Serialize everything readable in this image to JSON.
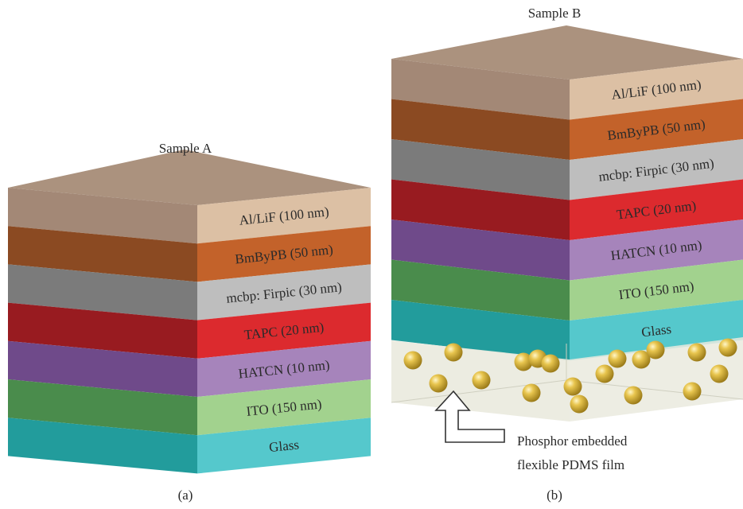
{
  "sample_a": {
    "title": "Sample A",
    "caption": "(a)",
    "layers": [
      {
        "label": "Al/LiF (100 nm)",
        "front": "#dcc0a4",
        "side": "#a38876"
      },
      {
        "label": "BmByPB (50 nm)",
        "front": "#c3622a",
        "side": "#8b4a22"
      },
      {
        "label": "mcbp: Firpic (30 nm)",
        "front": "#bebebe",
        "side": "#7b7b7b"
      },
      {
        "label": "TAPC (20 nm)",
        "front": "#dc2a2e",
        "side": "#981b20"
      },
      {
        "label": "HATCN (10 nm)",
        "front": "#a684bb",
        "side": "#6f4a8a"
      },
      {
        "label": "ITO (150 nm)",
        "front": "#a2d28e",
        "side": "#4a8c4c"
      },
      {
        "label": "Glass",
        "front": "#55c8cc",
        "side": "#229c9c"
      }
    ],
    "top_color": "#ab927e"
  },
  "sample_b": {
    "title": "Sample B",
    "caption": "(b)",
    "layers": [
      {
        "label": "Al/LiF (100 nm)",
        "front": "#dcc0a4",
        "side": "#a38876"
      },
      {
        "label": "BmByPB (50 nm)",
        "front": "#c3622a",
        "side": "#8b4a22"
      },
      {
        "label": "mcbp: Firpic (30 nm)",
        "front": "#bebebe",
        "side": "#7b7b7b"
      },
      {
        "label": "TAPC (20 nm)",
        "front": "#dc2a2e",
        "side": "#981b20"
      },
      {
        "label": "HATCN (10 nm)",
        "front": "#a684bb",
        "side": "#6f4a8a"
      },
      {
        "label": "ITO (150 nm)",
        "front": "#a2d28e",
        "side": "#4a8c4c"
      },
      {
        "label": "Glass",
        "front": "#55c8cc",
        "side": "#229c9c"
      }
    ],
    "top_color": "#ab927e",
    "film": {
      "label_line1": "Phosphor embedded",
      "label_line2": "flexible PDMS film",
      "color": "#eaeade",
      "particle_color": "#d8b540"
    }
  }
}
